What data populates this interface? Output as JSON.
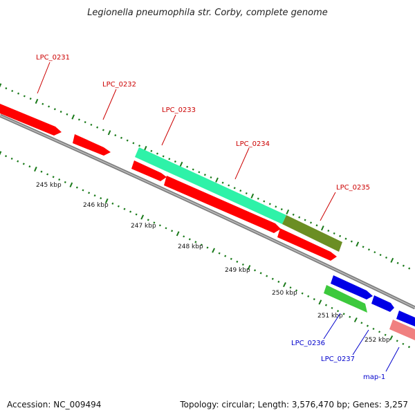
{
  "title": "Legionella pneumophila str. Corby, complete genome",
  "footer": {
    "accession": "Accession: NC_009494",
    "summary": "Topology: circular; Length: 3,576,470 bp; Genes: 3,257"
  },
  "colors": {
    "backbone": "#7f7f7f",
    "cds": "#ff0000",
    "gene_cds": "#2ef2a8",
    "gene_cds_dark": "#6b8e23",
    "rna_blue": "#0000e6",
    "rna_green": "#3dc93d",
    "pink": "#f08080",
    "tick": "#1a7a1a",
    "label_red": "#cc0000",
    "label_blue": "#0000cc"
  },
  "scale_ticks": [
    "245 kbp",
    "246 kbp",
    "247 kbp",
    "248 kbp",
    "249 kbp",
    "250 kbp",
    "251 kbp",
    "252 kbp"
  ],
  "genes": [
    {
      "label": "LPC_0231",
      "color": "red"
    },
    {
      "label": "LPC_0232",
      "color": "red"
    },
    {
      "label": "LPC_0233",
      "color": "red"
    },
    {
      "label": "LPC_0234",
      "color": "red"
    },
    {
      "label": "LPC_0235",
      "color": "red"
    },
    {
      "label": "LPC_0236",
      "color": "blue"
    },
    {
      "label": "LPC_0237",
      "color": "blue"
    },
    {
      "label": "map-1",
      "color": "blue"
    }
  ]
}
